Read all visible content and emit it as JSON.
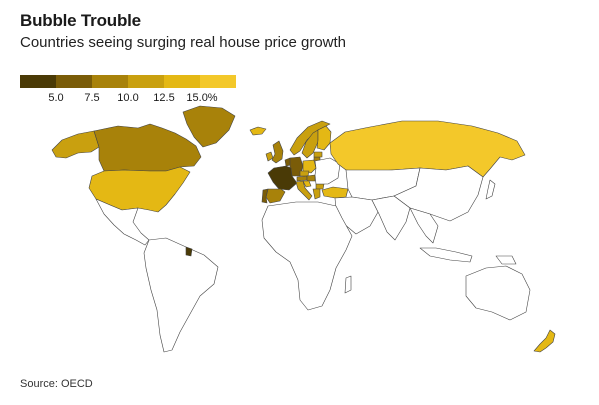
{
  "header": {
    "title": "Bubble Trouble",
    "subtitle": "Countries seeing surging real house price growth"
  },
  "legend": {
    "colors": [
      "#4a3a06",
      "#7a5c08",
      "#a8820a",
      "#c9a00f",
      "#e4b814",
      "#f3c82a"
    ],
    "ticks": [
      "5.0",
      "7.5",
      "10.0",
      "12.5",
      "15.0%"
    ]
  },
  "map": {
    "no_data_color": "#ffffff",
    "highlighted": [
      {
        "region": "alaska",
        "bin": 3
      },
      {
        "region": "canada",
        "bin": 2
      },
      {
        "region": "united-states",
        "bin": 4
      },
      {
        "region": "greenland",
        "bin": 2
      },
      {
        "region": "iceland",
        "bin": 4
      },
      {
        "region": "norway",
        "bin": 3
      },
      {
        "region": "sweden",
        "bin": 3
      },
      {
        "region": "finland",
        "bin": 4
      },
      {
        "region": "russia",
        "bin": 5
      },
      {
        "region": "united-kingdom",
        "bin": 2
      },
      {
        "region": "ireland",
        "bin": 3
      },
      {
        "region": "netherlands",
        "bin": 1
      },
      {
        "region": "germany",
        "bin": 1
      },
      {
        "region": "france",
        "bin": 0
      },
      {
        "region": "spain",
        "bin": 2
      },
      {
        "region": "portugal",
        "bin": 1
      },
      {
        "region": "italy",
        "bin": 3
      },
      {
        "region": "austria",
        "bin": 2
      },
      {
        "region": "czechia",
        "bin": 3
      },
      {
        "region": "poland",
        "bin": 4
      },
      {
        "region": "lithuania",
        "bin": 2
      },
      {
        "region": "latvia",
        "bin": 3
      },
      {
        "region": "hungary",
        "bin": 2
      },
      {
        "region": "croatia",
        "bin": 4
      },
      {
        "region": "bulgaria",
        "bin": 3
      },
      {
        "region": "greece",
        "bin": 3
      },
      {
        "region": "turkey",
        "bin": 4
      },
      {
        "region": "french-guiana",
        "bin": 0
      },
      {
        "region": "new-zealand",
        "bin": 4
      }
    ]
  },
  "footer": {
    "source": "Source: OECD"
  }
}
